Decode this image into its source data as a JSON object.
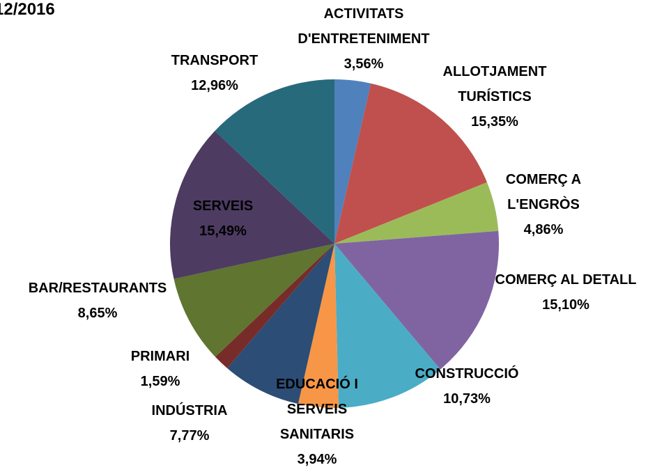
{
  "chart_data": {
    "type": "pie",
    "title": "12/2016",
    "categories": [
      "ACTIVITATS D'ENTRETENIMENT",
      "ALLOTJAMENT TURÍSTICS",
      "COMERÇ A L'ENGRÒS",
      "COMERÇ AL DETALL",
      "CONSTRUCCIÓ",
      "EDUCACIÓ I SERVEIS SANITARIS",
      "INDÚSTRIA",
      "PRIMARI",
      "BAR/RESTAURANTS",
      "SERVEIS",
      "TRANSPORT"
    ],
    "values": [
      3.56,
      15.35,
      4.86,
      15.1,
      10.73,
      3.94,
      7.77,
      1.59,
      8.65,
      15.49,
      12.96
    ],
    "value_labels": [
      "3,56%",
      "15,35%",
      "4,86%",
      "15,10%",
      "10,73%",
      "3,94%",
      "7,77%",
      "1,59%",
      "8,65%",
      "15,49%",
      "12,96%"
    ],
    "colors": [
      "#4f81bd",
      "#c0504d",
      "#9bbb59",
      "#8064a2",
      "#4bacc6",
      "#f79646",
      "#2c4d75",
      "#772c2a",
      "#5f7530",
      "#4d3b62",
      "#276a7c"
    ]
  }
}
